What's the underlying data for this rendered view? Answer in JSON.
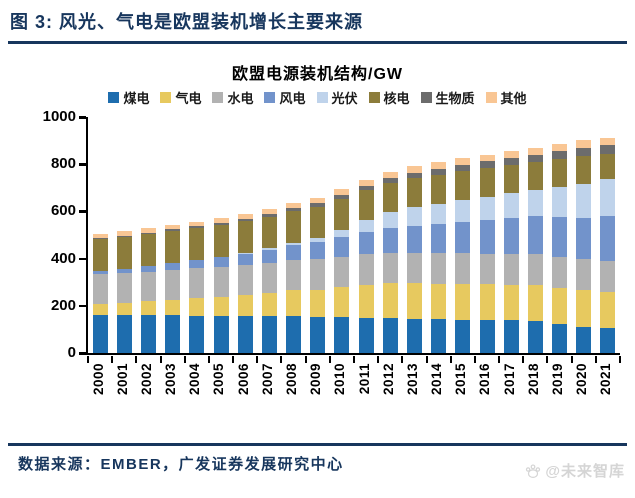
{
  "header": {
    "title": "图 3:  风光、气电是欧盟装机增长主要来源"
  },
  "chart": {
    "title": "欧盟电源装机结构/GW"
  },
  "chart_data": {
    "type": "bar",
    "stacked": true,
    "title": "欧盟电源装机结构/GW",
    "xlabel": "",
    "ylabel": "GW",
    "ylim": [
      0,
      1000
    ],
    "yticks": [
      0,
      200,
      400,
      600,
      800,
      1000
    ],
    "grid": false,
    "legend_position": "top",
    "categories": [
      "2000",
      "2001",
      "2002",
      "2003",
      "2004",
      "2005",
      "2006",
      "2007",
      "2008",
      "2009",
      "2010",
      "2011",
      "2012",
      "2013",
      "2014",
      "2015",
      "2016",
      "2017",
      "2018",
      "2019",
      "2020",
      "2021"
    ],
    "series": [
      {
        "name": "煤电",
        "color": "#1E6DAE",
        "values": [
          160,
          160,
          159,
          159,
          158,
          158,
          157,
          156,
          155,
          154,
          152,
          150,
          148,
          146,
          144,
          142,
          140,
          138,
          135,
          122,
          112,
          105
        ]
      },
      {
        "name": "气电",
        "color": "#E7C95F",
        "values": [
          48,
          54,
          60,
          67,
          74,
          81,
          90,
          99,
          110,
          115,
          128,
          140,
          148,
          150,
          150,
          151,
          151,
          152,
          153,
          155,
          155,
          155
        ]
      },
      {
        "name": "水电",
        "color": "#B2B2B2",
        "values": [
          126,
          126,
          126,
          126,
          127,
          127,
          127,
          127,
          128,
          128,
          128,
          128,
          128,
          129,
          129,
          129,
          129,
          130,
          130,
          130,
          130,
          130
        ]
      },
      {
        "name": "风电",
        "color": "#7293CB",
        "values": [
          12,
          17,
          23,
          28,
          34,
          40,
          47,
          56,
          64,
          74,
          84,
          94,
          105,
          114,
          123,
          134,
          143,
          153,
          161,
          170,
          177,
          190
        ]
      },
      {
        "name": "光伏",
        "color": "#BFD3EB",
        "values": [
          0,
          0,
          0,
          1,
          1,
          2,
          3,
          5,
          10,
          16,
          30,
          52,
          69,
          80,
          87,
          93,
          99,
          104,
          110,
          125,
          141,
          158
        ]
      },
      {
        "name": "核电",
        "color": "#8C7C3B",
        "values": [
          136,
          136,
          136,
          136,
          135,
          135,
          135,
          134,
          134,
          133,
          131,
          126,
          124,
          124,
          123,
          123,
          122,
          121,
          120,
          120,
          120,
          106
        ]
      },
      {
        "name": "生物质",
        "color": "#6C6C6C",
        "values": [
          5,
          5,
          6,
          7,
          8,
          9,
          10,
          11,
          12,
          14,
          16,
          18,
          20,
          22,
          24,
          26,
          28,
          30,
          32,
          34,
          36,
          37
        ]
      },
      {
        "name": "其他",
        "color": "#F9C694",
        "values": [
          18,
          19,
          19,
          20,
          20,
          21,
          22,
          22,
          23,
          24,
          25,
          26,
          27,
          28,
          28,
          29,
          29,
          30,
          30,
          31,
          31,
          31
        ]
      }
    ]
  },
  "footer": {
    "source": "数据来源：EMBER，广发证券发展研究中心",
    "watermark": "@未来智库"
  },
  "colors": {
    "accent_navy": "#17365D",
    "watermark_gray": "#D5D5D5"
  }
}
